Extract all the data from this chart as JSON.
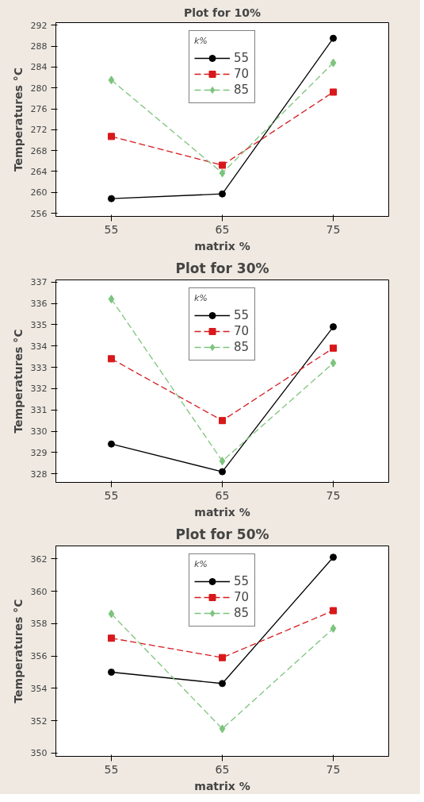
{
  "chart_data": [
    {
      "type": "line",
      "title": "Plot for 10%",
      "xlabel": "matrix %",
      "ylabel": "Temperatures °C",
      "legend_title": "k%",
      "legend": "top",
      "grid": false,
      "x": [
        55,
        65,
        75
      ],
      "xlim": [
        50,
        80
      ],
      "xticks": [
        55,
        65,
        75
      ],
      "ylim": [
        255.4,
        292.5
      ],
      "yticks": [
        256,
        260,
        264,
        268,
        272,
        276,
        280,
        284,
        288,
        292
      ],
      "series": [
        {
          "name": "55",
          "color": "#000000",
          "marker": "circle",
          "line_style": "solid",
          "values": [
            258.8,
            259.7,
            289.5
          ]
        },
        {
          "name": "70",
          "color": "#d7191c",
          "marker": "square",
          "line_style": "dashed",
          "values": [
            270.7,
            265.2,
            279.2
          ]
        },
        {
          "name": "85",
          "color": "#7cc47c",
          "marker": "diamond",
          "line_style": "dashed",
          "values": [
            281.5,
            263.7,
            284.8
          ]
        }
      ]
    },
    {
      "type": "line",
      "title": "Plot for 30%",
      "xlabel": "matrix %",
      "ylabel": "Temperatures °C",
      "legend_title": "k%",
      "legend": "top",
      "grid": false,
      "x": [
        55,
        65,
        75
      ],
      "xlim": [
        50,
        80
      ],
      "xticks": [
        55,
        65,
        75
      ],
      "ylim": [
        327.6,
        337.1
      ],
      "yticks": [
        328,
        329,
        330,
        331,
        332,
        333,
        334,
        335,
        336,
        337
      ],
      "series": [
        {
          "name": "55",
          "color": "#000000",
          "marker": "circle",
          "line_style": "solid",
          "values": [
            329.4,
            328.1,
            334.9
          ]
        },
        {
          "name": "70",
          "color": "#d7191c",
          "marker": "square",
          "line_style": "dashed",
          "values": [
            333.4,
            330.5,
            333.9
          ]
        },
        {
          "name": "85",
          "color": "#7cc47c",
          "marker": "diamond",
          "line_style": "dashed",
          "values": [
            336.2,
            328.6,
            333.2
          ]
        }
      ]
    },
    {
      "type": "line",
      "title": "Plot for 50%",
      "xlabel": "matrix %",
      "ylabel": "Temperatures °C",
      "legend_title": "k%",
      "legend": "top",
      "grid": false,
      "x": [
        55,
        65,
        75
      ],
      "xlim": [
        50,
        80
      ],
      "xticks": [
        55,
        65,
        75
      ],
      "ylim": [
        349.8,
        362.8
      ],
      "yticks": [
        350,
        352,
        354,
        356,
        358,
        360,
        362
      ],
      "series": [
        {
          "name": "55",
          "color": "#000000",
          "marker": "circle",
          "line_style": "solid",
          "values": [
            355.0,
            354.3,
            362.1
          ]
        },
        {
          "name": "70",
          "color": "#d7191c",
          "marker": "square",
          "line_style": "dashed",
          "values": [
            357.1,
            355.9,
            358.8
          ]
        },
        {
          "name": "85",
          "color": "#7cc47c",
          "marker": "diamond",
          "line_style": "dashed",
          "values": [
            358.6,
            351.5,
            357.7
          ]
        }
      ]
    }
  ]
}
